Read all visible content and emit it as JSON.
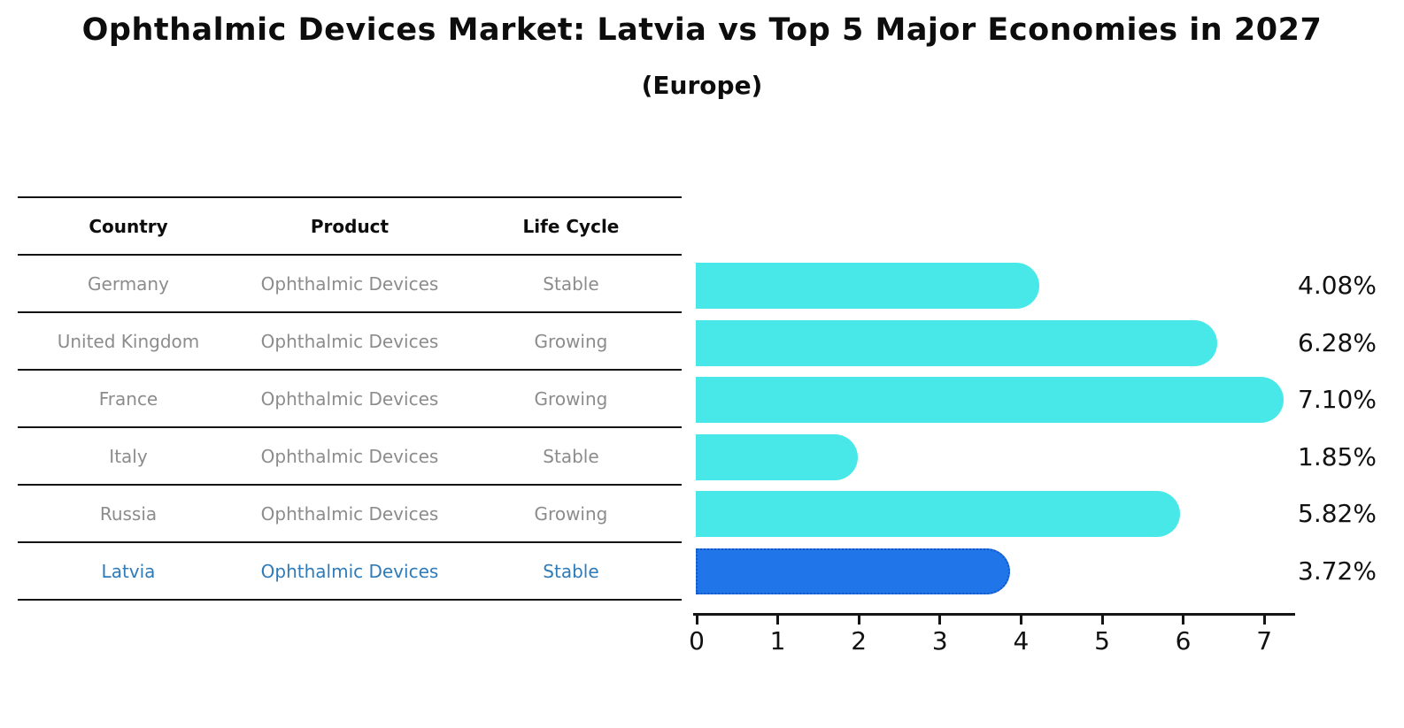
{
  "title": "Ophthalmic Devices Market: Latvia vs Top 5 Major Economies in 2027",
  "subtitle": "(Europe)",
  "table": {
    "headers": [
      "Country",
      "Product",
      "Life Cycle"
    ],
    "rows": [
      {
        "country": "Germany",
        "product": "Ophthalmic Devices",
        "life_cycle": "Stable",
        "highlight": false
      },
      {
        "country": "United Kingdom",
        "product": "Ophthalmic Devices",
        "life_cycle": "Growing",
        "highlight": false
      },
      {
        "country": "France",
        "product": "Ophthalmic Devices",
        "life_cycle": "Growing",
        "highlight": false
      },
      {
        "country": "Italy",
        "product": "Ophthalmic Devices",
        "life_cycle": "Stable",
        "highlight": false
      },
      {
        "country": "Russia",
        "product": "Ophthalmic Devices",
        "life_cycle": "Growing",
        "highlight": false
      },
      {
        "country": "Latvia",
        "product": "Ophthalmic Devices",
        "life_cycle": "Stable",
        "highlight": true
      }
    ]
  },
  "chart_data": {
    "type": "bar",
    "orientation": "horizontal",
    "title": "Ophthalmic Devices Market: Latvia vs Top 5 Major Economies in 2027 (Europe)",
    "categories": [
      "Germany",
      "United Kingdom",
      "France",
      "Italy",
      "Russia",
      "Latvia"
    ],
    "values": [
      4.08,
      6.28,
      7.1,
      1.85,
      5.82,
      3.72
    ],
    "value_labels": [
      "4.08%",
      "6.28%",
      "7.10%",
      "1.85%",
      "5.82%",
      "3.72%"
    ],
    "unit": "%",
    "x_ticks": [
      "0",
      "1",
      "2",
      "3",
      "4",
      "5",
      "6",
      "7"
    ],
    "xlim": [
      0,
      7.4
    ],
    "xlabel": "",
    "ylabel": "",
    "grid": false,
    "legend": false,
    "bar_color": "#48e7e8",
    "highlight_index": 5,
    "highlight_color": "#2076e8",
    "highlight_border_color": "#1457c9",
    "highlight_text_color": "#2f7bb9"
  }
}
